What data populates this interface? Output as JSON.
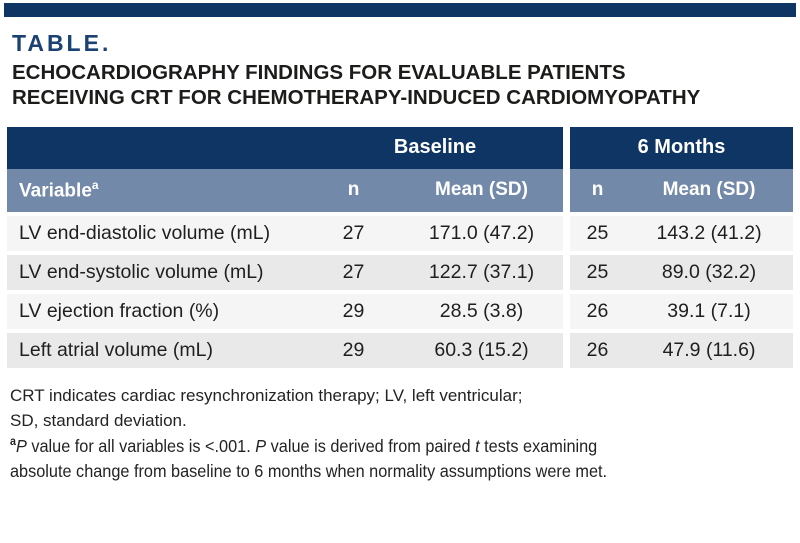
{
  "colors": {
    "header_navy": "#0e3564",
    "label_navy": "#1b4273",
    "subheader_slate_blue": "#7389aa",
    "row_light": "#f5f5f6",
    "row_shaded": "#e9e9ea",
    "text_dark": "#1f1f1f"
  },
  "header": {
    "label": "TABLE.",
    "title_line1": "ECHOCARDIOGRAPHY FINDINGS FOR EVALUABLE PATIENTS",
    "title_line2": "RECEIVING CRT FOR CHEMOTHERAPY-INDUCED CARDIOMYOPATHY"
  },
  "table": {
    "group_headers": {
      "baseline": "Baseline",
      "six_months": "6 Months"
    },
    "col_headers": {
      "variable": "Variable",
      "variable_sup": "a",
      "n_label": "n",
      "mean_sd_label": "Mean (SD)"
    },
    "rows": [
      {
        "variable": "LV end-diastolic volume (mL)",
        "baseline_n": "27",
        "baseline_mean_sd": "171.0 (47.2)",
        "six_months_n": "25",
        "six_months_mean_sd": "143.2 (41.2)"
      },
      {
        "variable": "LV end-systolic volume (mL)",
        "baseline_n": "27",
        "baseline_mean_sd": "122.7 (37.1)",
        "six_months_n": "25",
        "six_months_mean_sd": "89.0 (32.2)"
      },
      {
        "variable": "LV ejection fraction (%)",
        "baseline_n": "29",
        "baseline_mean_sd": "28.5 (3.8)",
        "six_months_n": "26",
        "six_months_mean_sd": "39.1 (7.1)"
      },
      {
        "variable": "Left atrial volume (mL)",
        "baseline_n": "29",
        "baseline_mean_sd": "60.3 (15.2)",
        "six_months_n": "26",
        "six_months_mean_sd": "47.9 (11.6)"
      }
    ]
  },
  "footnotes": {
    "abbrev_line1": "CRT indicates cardiac resynchronization therapy; LV, left ventricular;",
    "abbrev_line2": "SD, standard deviation.",
    "note_a": {
      "marker": "a",
      "italic1": "P",
      "text1": " value for all variables is <.001. ",
      "italic2": "P",
      "text2": " value is derived from paired ",
      "italic3": "t",
      "text3": " tests examining",
      "line2": "absolute change from baseline to 6 months when normality assumptions were met."
    }
  },
  "chart_data": {
    "type": "table",
    "title": "ECHOCARDIOGRAPHY FINDINGS FOR EVALUABLE PATIENTS RECEIVING CRT FOR CHEMOTHERAPY-INDUCED CARDIOMYOPATHY",
    "column_groups": [
      "Baseline",
      "6 Months"
    ],
    "columns": [
      "Variable",
      "Baseline n",
      "Baseline Mean (SD)",
      "6 Months n",
      "6 Months Mean (SD)"
    ],
    "rows": [
      [
        "LV end-diastolic volume (mL)",
        27,
        "171.0 (47.2)",
        25,
        "143.2 (41.2)"
      ],
      [
        "LV end-systolic volume (mL)",
        27,
        "122.7 (37.1)",
        25,
        "89.0 (32.2)"
      ],
      [
        "LV ejection fraction (%)",
        29,
        "28.5 (3.8)",
        26,
        "39.1 (7.1)"
      ],
      [
        "Left atrial volume (mL)",
        29,
        "60.3 (15.2)",
        26,
        "47.9 (11.6)"
      ]
    ]
  }
}
